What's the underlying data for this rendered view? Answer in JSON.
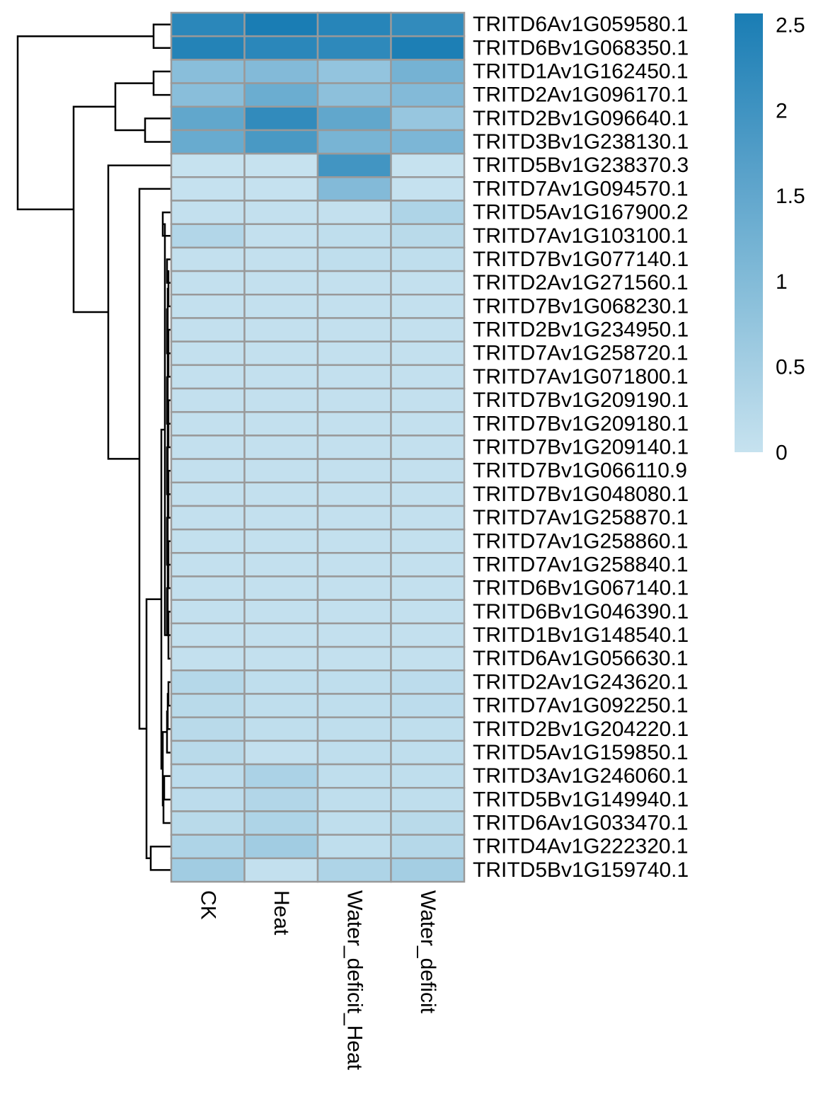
{
  "chart_data": {
    "type": "heatmap",
    "columns": [
      "CK",
      "Heat",
      "Water_deficit_Heat",
      "Water_deficit"
    ],
    "rows": [
      "TRITD6Av1G059580.1",
      "TRITD6Bv1G068350.1",
      "TRITD1Av1G162450.1",
      "TRITD2Av1G096170.1",
      "TRITD2Bv1G096640.1",
      "TRITD3Bv1G238130.1",
      "TRITD5Bv1G238370.3",
      "TRITD7Av1G094570.1",
      "TRITD5Av1G167900.2",
      "TRITD7Av1G103100.1",
      "TRITD7Bv1G077140.1",
      "TRITD2Av1G271560.1",
      "TRITD7Bv1G068230.1",
      "TRITD2Bv1G234950.1",
      "TRITD7Av1G258720.1",
      "TRITD7Av1G071800.1",
      "TRITD7Bv1G209190.1",
      "TRITD7Bv1G209180.1",
      "TRITD7Bv1G209140.1",
      "TRITD7Bv1G066110.9",
      "TRITD7Bv1G048080.1",
      "TRITD7Av1G258870.1",
      "TRITD7Av1G258860.1",
      "TRITD7Av1G258840.1",
      "TRITD6Bv1G067140.1",
      "TRITD6Bv1G046390.1",
      "TRITD1Bv1G148540.1",
      "TRITD6Av1G056630.1",
      "TRITD2Av1G243620.1",
      "TRITD7Av1G092250.1",
      "TRITD2Bv1G204220.1",
      "TRITD5Av1G159850.1",
      "TRITD3Av1G246060.1",
      "TRITD5Bv1G149940.1",
      "TRITD6Av1G033470.1",
      "TRITD4Av1G222320.1",
      "TRITD5Bv1G159740.1"
    ],
    "values": [
      [
        2.3,
        2.55,
        2.35,
        2.2
      ],
      [
        2.4,
        2.3,
        2.25,
        2.5
      ],
      [
        0.9,
        1.0,
        0.75,
        1.2
      ],
      [
        0.9,
        1.35,
        0.85,
        1.0
      ],
      [
        1.5,
        2.2,
        1.5,
        0.7
      ],
      [
        1.4,
        1.85,
        1.15,
        1.1
      ],
      [
        0.0,
        0.0,
        1.95,
        0.0
      ],
      [
        0.02,
        0.02,
        1.0,
        0.02
      ],
      [
        0.05,
        0.05,
        0.05,
        0.35
      ],
      [
        0.3,
        0.05,
        0.1,
        0.2
      ],
      [
        0.05,
        0.05,
        0.1,
        0.1
      ],
      [
        0.05,
        0.05,
        0.05,
        0.05
      ],
      [
        0.05,
        0.05,
        0.05,
        0.05
      ],
      [
        0.05,
        0.05,
        0.05,
        0.05
      ],
      [
        0.05,
        0.05,
        0.05,
        0.05
      ],
      [
        0.05,
        0.05,
        0.05,
        0.05
      ],
      [
        0.05,
        0.05,
        0.05,
        0.05
      ],
      [
        0.05,
        0.05,
        0.05,
        0.05
      ],
      [
        0.05,
        0.05,
        0.05,
        0.05
      ],
      [
        0.05,
        0.05,
        0.05,
        0.05
      ],
      [
        0.05,
        0.05,
        0.05,
        0.05
      ],
      [
        0.05,
        0.05,
        0.05,
        0.05
      ],
      [
        0.05,
        0.05,
        0.05,
        0.05
      ],
      [
        0.05,
        0.05,
        0.05,
        0.05
      ],
      [
        0.05,
        0.05,
        0.05,
        0.05
      ],
      [
        0.05,
        0.05,
        0.05,
        0.05
      ],
      [
        0.05,
        0.05,
        0.05,
        0.05
      ],
      [
        0.05,
        0.05,
        0.05,
        0.05
      ],
      [
        0.25,
        0.1,
        0.1,
        0.15
      ],
      [
        0.2,
        0.1,
        0.1,
        0.15
      ],
      [
        0.2,
        0.1,
        0.1,
        0.1
      ],
      [
        0.2,
        0.05,
        0.1,
        0.1
      ],
      [
        0.15,
        0.4,
        0.1,
        0.1
      ],
      [
        0.15,
        0.3,
        0.1,
        0.1
      ],
      [
        0.2,
        0.35,
        0.1,
        0.2
      ],
      [
        0.35,
        0.55,
        0.1,
        0.25
      ],
      [
        0.55,
        0.05,
        0.35,
        0.5
      ]
    ],
    "color_scale": {
      "min": 0,
      "max": 2.55,
      "low_color": "#c6e2ef",
      "high_color": "#1a7db4"
    },
    "legend": {
      "ticks": [
        "2.5",
        "2",
        "1.5",
        "1",
        "0.5",
        "0"
      ],
      "tick_values": [
        2.5,
        2.0,
        1.5,
        1.0,
        0.5,
        0.0
      ],
      "placement": "top-right"
    },
    "row_dendrogram": true,
    "cell_border_color": "#999999",
    "dendrogram_color": "#000000"
  }
}
